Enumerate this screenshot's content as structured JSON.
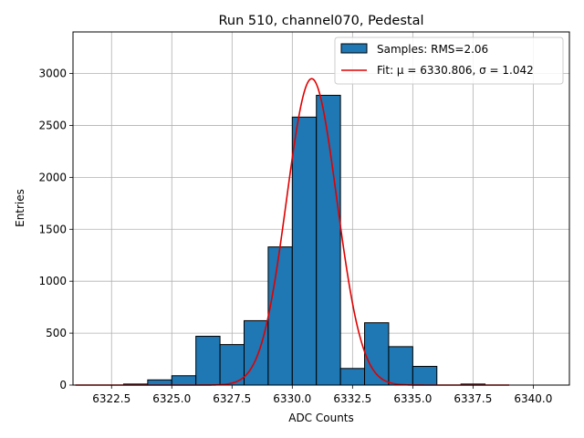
{
  "chart_data": {
    "type": "bar",
    "title": "Run 510, channel070, Pedestal",
    "xlabel": "ADC Counts",
    "ylabel": "Entries",
    "xlim": [
      6320.9,
      6341.5
    ],
    "ylim": [
      0,
      3400
    ],
    "xticks": [
      6322.5,
      6325.0,
      6327.5,
      6330.0,
      6332.5,
      6335.0,
      6337.5,
      6340.0
    ],
    "xtick_labels": [
      "6322.5",
      "6325.0",
      "6327.5",
      "6330.0",
      "6332.5",
      "6335.0",
      "6337.5",
      "6340.0"
    ],
    "yticks": [
      0,
      500,
      1000,
      1500,
      2000,
      2500,
      3000
    ],
    "ytick_labels": [
      "0",
      "500",
      "1000",
      "1500",
      "2000",
      "2500",
      "3000"
    ],
    "grid": true,
    "legend_position": "top-right",
    "histogram": {
      "name": "Samples: RMS=2.06",
      "color": "#1f77b4",
      "edgecolor": "#000000",
      "bin_edges": [
        6321,
        6322,
        6323,
        6324,
        6325,
        6326,
        6327,
        6328,
        6329,
        6330,
        6331,
        6332,
        6333,
        6334,
        6335,
        6336,
        6337,
        6338,
        6339,
        6340,
        6341
      ],
      "counts": [
        0,
        0,
        10,
        50,
        90,
        470,
        390,
        620,
        1330,
        2580,
        2790,
        160,
        600,
        370,
        180,
        0,
        10,
        0,
        0,
        0
      ]
    },
    "fit": {
      "name": "Fit: μ = 6330.806, σ = 1.042",
      "color": "#e00000",
      "mu": 6330.806,
      "sigma": 1.042,
      "amplitude": 2950,
      "x_range": [
        6321,
        6339
      ]
    }
  }
}
